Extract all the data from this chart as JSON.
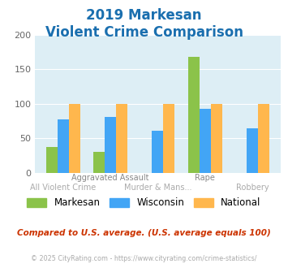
{
  "title_line1": "2019 Markesan",
  "title_line2": "Violent Crime Comparison",
  "title_color": "#1a6faf",
  "categories": [
    "All Violent Crime",
    "Aggravated Assault",
    "Murder & Mans...",
    "Rape",
    "Robbery"
  ],
  "row1_labels": [
    "",
    "Aggravated Assault",
    "",
    "Rape",
    ""
  ],
  "row2_labels": [
    "All Violent Crime",
    "",
    "Murder & Mans...",
    "",
    "Robbery"
  ],
  "series": {
    "Markesan": [
      38,
      30,
      0,
      168,
      0
    ],
    "Wisconsin": [
      78,
      81,
      61,
      93,
      64
    ],
    "National": [
      100,
      100,
      100,
      100,
      100
    ]
  },
  "colors": {
    "Markesan": "#8bc34a",
    "Wisconsin": "#42a5f5",
    "National": "#ffb74d"
  },
  "ylim": [
    0,
    200
  ],
  "yticks": [
    0,
    50,
    100,
    150,
    200
  ],
  "background_color": "#ffffff",
  "plot_bg": "#ddeef5",
  "note": "Compared to U.S. average. (U.S. average equals 100)",
  "note_color": "#cc3300",
  "copyright": "© 2025 CityRating.com - https://www.cityrating.com/crime-statistics/",
  "copyright_color": "#aaaaaa",
  "row1_label_color": "#888888",
  "row2_label_color": "#aaaaaa"
}
